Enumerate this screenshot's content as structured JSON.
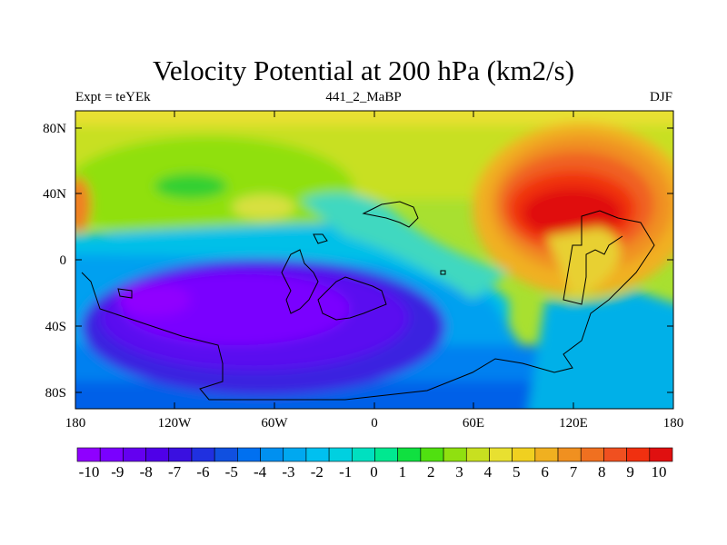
{
  "title": "Velocity Potential at 200 hPa (km2/s)",
  "left_string": "Expt = teYEk",
  "center_string": "441_2_MaBP",
  "right_string": "DJF",
  "y_ticks": [
    "80N",
    "40N",
    "0",
    "40S",
    "80S"
  ],
  "x_ticks": [
    "180",
    "120W",
    "60W",
    "0",
    "60E",
    "120E",
    "180"
  ],
  "colorbar_labels": [
    "-10",
    "-9",
    "-8",
    "-7",
    "-6",
    "-5",
    "-4",
    "-3",
    "-2",
    "-1",
    "0",
    "1",
    "2",
    "3",
    "4",
    "5",
    "6",
    "7",
    "8",
    "9",
    "10"
  ],
  "colors": {
    "colormap": [
      "#8f00ff",
      "#7a00ff",
      "#6400f0",
      "#4f00e8",
      "#3a10e0",
      "#2030e0",
      "#1050e0",
      "#0070f0",
      "#0090f0",
      "#00a8f0",
      "#00c0f0",
      "#00d0e0",
      "#00e0c0",
      "#00e890",
      "#10e040",
      "#50e010",
      "#90e010",
      "#c8e020",
      "#e8e030",
      "#f0d020",
      "#f0b020",
      "#f09020",
      "#f07020",
      "#f05020",
      "#f03010",
      "#e01010"
    ]
  }
}
